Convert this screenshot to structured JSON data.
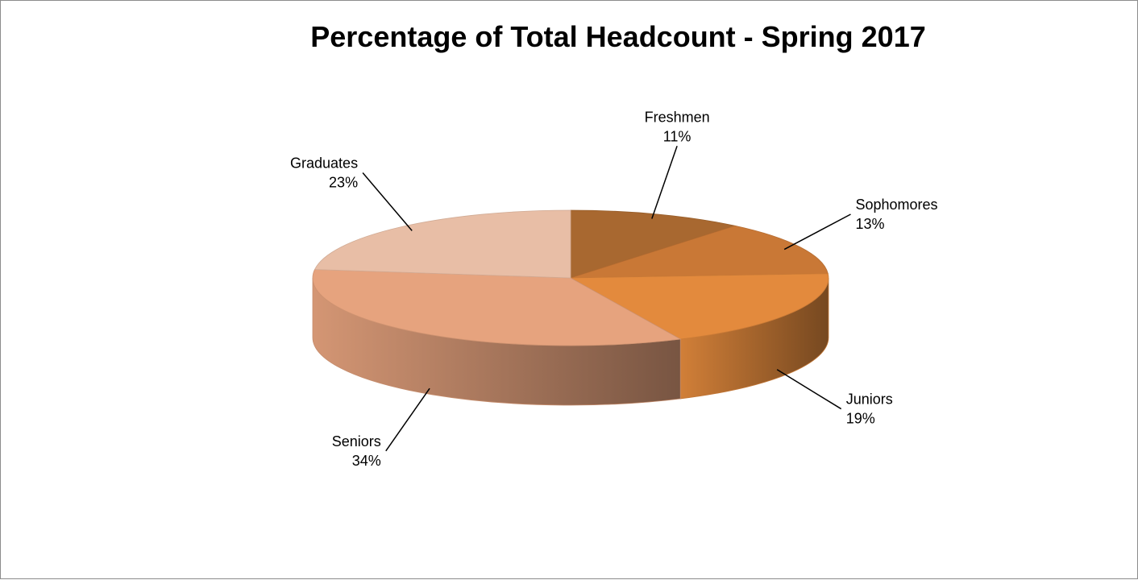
{
  "chart_data": {
    "type": "pie",
    "title": "Percentage of Total Headcount - Spring 2017",
    "slices": [
      {
        "label": "Freshmen",
        "value": 11,
        "pct_text": "11%",
        "color": "#a86830"
      },
      {
        "label": "Sophomores",
        "value": 13,
        "pct_text": "13%",
        "color": "#c97836"
      },
      {
        "label": "Juniors",
        "value": 19,
        "pct_text": "19%",
        "color": "#e38a3d"
      },
      {
        "label": "Seniors",
        "value": 34,
        "pct_text": "34%",
        "color": "#e6a37e"
      },
      {
        "label": "Graduates",
        "value": 23,
        "pct_text": "23%",
        "color": "#e8bea6"
      }
    ],
    "style": "3d-pie",
    "legend": "none"
  }
}
